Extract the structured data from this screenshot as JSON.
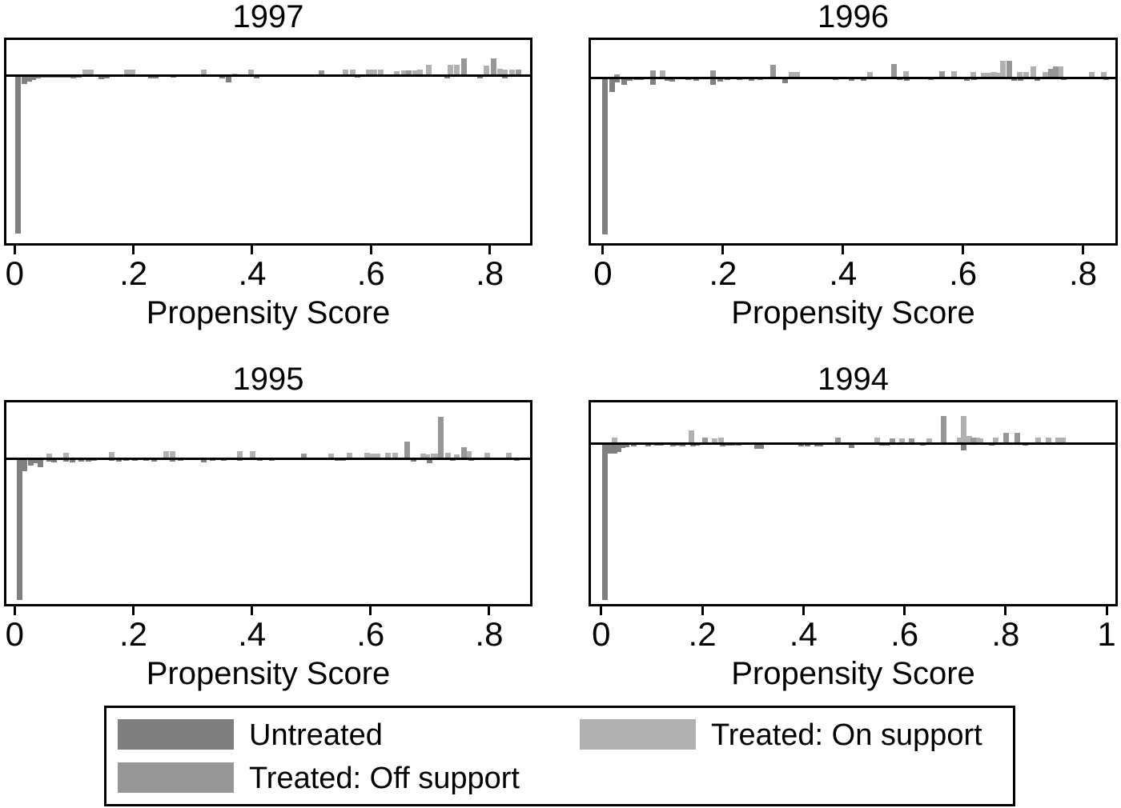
{
  "figure": {
    "background": "#ffffff",
    "line_color": "#000000"
  },
  "legend": {
    "items": [
      {
        "label": "Untreated",
        "color": "#7f7f7f"
      },
      {
        "label": "Treated: On support",
        "color": "#b1b1b1"
      },
      {
        "label": "Treated: Off support",
        "color": "#979797"
      }
    ]
  },
  "chart_data": [
    {
      "type": "bar",
      "title": "1997",
      "xlabel": "Propensity Score",
      "xlim": [
        -0.018,
        0.872
      ],
      "xticks": [
        0,
        0.2,
        0.4,
        0.6,
        0.8
      ],
      "xtick_labels": [
        "0",
        ".2",
        ".4",
        ".6",
        ".8"
      ],
      "grid": false,
      "note": "heights are density in display units; Untreated drawn downward from zero line",
      "series": [
        {
          "name": "Untreated",
          "direction": "down",
          "color": "#808080",
          "points": [
            [
              0.001,
              197
            ],
            [
              0.012,
              10
            ],
            [
              0.02,
              7
            ],
            [
              0.027,
              5
            ],
            [
              0.035,
              3
            ],
            [
              0.043,
              2
            ],
            [
              0.051,
              2
            ],
            [
              0.059,
              2
            ],
            [
              0.067,
              2
            ],
            [
              0.077,
              2
            ],
            [
              0.086,
              2
            ],
            [
              0.094,
              3
            ],
            [
              0.104,
              2
            ],
            [
              0.142,
              4
            ],
            [
              0.151,
              3
            ],
            [
              0.225,
              3
            ],
            [
              0.234,
              3
            ],
            [
              0.263,
              2
            ],
            [
              0.346,
              3
            ],
            [
              0.356,
              8
            ],
            [
              0.403,
              3
            ],
            [
              0.573,
              2
            ],
            [
              0.724,
              3
            ],
            [
              0.78,
              3
            ],
            [
              0.822,
              3
            ]
          ]
        },
        {
          "name": "Treated: On support",
          "direction": "up",
          "color": "#b1b1b1",
          "points": [
            [
              0.115,
              8
            ],
            [
              0.124,
              8
            ],
            [
              0.185,
              8
            ],
            [
              0.195,
              8
            ],
            [
              0.315,
              8
            ],
            [
              0.367,
              3
            ],
            [
              0.394,
              8
            ],
            [
              0.553,
              8
            ],
            [
              0.565,
              8
            ],
            [
              0.592,
              8
            ],
            [
              0.602,
              8
            ],
            [
              0.613,
              8
            ],
            [
              0.64,
              6
            ],
            [
              0.652,
              7
            ],
            [
              0.67,
              7
            ],
            [
              0.679,
              8
            ],
            [
              0.693,
              14
            ],
            [
              0.73,
              14
            ],
            [
              0.741,
              14
            ],
            [
              0.791,
              13
            ],
            [
              0.814,
              9
            ],
            [
              0.822,
              8
            ],
            [
              0.834,
              8
            ]
          ]
        },
        {
          "name": "Treated: Off support",
          "direction": "up",
          "color": "#979797",
          "points": [
            [
              0.512,
              7
            ],
            [
              0.66,
              7
            ],
            [
              0.753,
              22
            ],
            [
              0.802,
              22
            ],
            [
              0.845,
              8
            ]
          ]
        }
      ]
    },
    {
      "type": "bar",
      "title": "1996",
      "xlabel": "Propensity Score",
      "xlim": [
        -0.024,
        0.858
      ],
      "xticks": [
        0,
        0.2,
        0.4,
        0.6,
        0.8
      ],
      "xtick_labels": [
        "0",
        ".2",
        ".4",
        ".6",
        ".8"
      ],
      "grid": false,
      "note": "heights are density in display units; Untreated drawn downward from zero line",
      "series": [
        {
          "name": "Untreated",
          "direction": "down",
          "color": "#808080",
          "points": [
            [
              0.0,
              195
            ],
            [
              0.012,
              17
            ],
            [
              0.02,
              5
            ],
            [
              0.032,
              8
            ],
            [
              0.041,
              3
            ],
            [
              0.051,
              2
            ],
            [
              0.06,
              2
            ],
            [
              0.08,
              8
            ],
            [
              0.103,
              3
            ],
            [
              0.111,
              4
            ],
            [
              0.138,
              2
            ],
            [
              0.151,
              3
            ],
            [
              0.179,
              8
            ],
            [
              0.191,
              4
            ],
            [
              0.204,
              2
            ],
            [
              0.224,
              2
            ],
            [
              0.244,
              3
            ],
            [
              0.258,
              2
            ],
            [
              0.299,
              6
            ],
            [
              0.383,
              2
            ],
            [
              0.41,
              3
            ],
            [
              0.43,
              3
            ],
            [
              0.49,
              2
            ],
            [
              0.502,
              3
            ],
            [
              0.543,
              2
            ],
            [
              0.602,
              3
            ],
            [
              0.614,
              2
            ],
            [
              0.681,
              3
            ],
            [
              0.692,
              3
            ],
            [
              0.72,
              3
            ],
            [
              0.764,
              2
            ],
            [
              0.834,
              2
            ]
          ]
        },
        {
          "name": "Treated: On support",
          "direction": "up",
          "color": "#b1b1b1",
          "points": [
            [
              0.096,
              10
            ],
            [
              0.31,
              8
            ],
            [
              0.32,
              8
            ],
            [
              0.441,
              8
            ],
            [
              0.501,
              9
            ],
            [
              0.581,
              9
            ],
            [
              0.613,
              8
            ],
            [
              0.63,
              7
            ],
            [
              0.64,
              7
            ],
            [
              0.648,
              8
            ],
            [
              0.657,
              7
            ],
            [
              0.663,
              22
            ],
            [
              0.69,
              8
            ],
            [
              0.701,
              8
            ],
            [
              0.713,
              15
            ],
            [
              0.733,
              8
            ],
            [
              0.758,
              15
            ],
            [
              0.81,
              8
            ],
            [
              0.83,
              8
            ]
          ]
        },
        {
          "name": "Treated: Off support",
          "direction": "up",
          "color": "#979797",
          "points": [
            [
              0.02,
              5
            ],
            [
              0.08,
              10
            ],
            [
              0.179,
              10
            ],
            [
              0.279,
              17
            ],
            [
              0.481,
              18
            ],
            [
              0.561,
              9
            ],
            [
              0.673,
              22
            ],
            [
              0.742,
              12
            ],
            [
              0.75,
              15
            ]
          ]
        }
      ]
    },
    {
      "type": "bar",
      "title": "1995",
      "xlabel": "Propensity Score",
      "xlim": [
        -0.018,
        0.873
      ],
      "xticks": [
        0,
        0.2,
        0.4,
        0.6,
        0.8
      ],
      "xtick_labels": [
        "0",
        ".2",
        ".4",
        ".6",
        ".8"
      ],
      "grid": false,
      "note": "heights are density in display units; Untreated drawn downward from zero line",
      "series": [
        {
          "name": "Untreated",
          "direction": "down",
          "color": "#808080",
          "points": [
            [
              0.004,
              176
            ],
            [
              0.013,
              15
            ],
            [
              0.023,
              8
            ],
            [
              0.03,
              5
            ],
            [
              0.039,
              10
            ],
            [
              0.054,
              3
            ],
            [
              0.062,
              4
            ],
            [
              0.083,
              3
            ],
            [
              0.094,
              4
            ],
            [
              0.108,
              3
            ],
            [
              0.121,
              3
            ],
            [
              0.13,
              2
            ],
            [
              0.16,
              2
            ],
            [
              0.171,
              3
            ],
            [
              0.184,
              2
            ],
            [
              0.198,
              2
            ],
            [
              0.218,
              2
            ],
            [
              0.231,
              3
            ],
            [
              0.262,
              3
            ],
            [
              0.276,
              2
            ],
            [
              0.315,
              4
            ],
            [
              0.329,
              2
            ],
            [
              0.348,
              2
            ],
            [
              0.376,
              2
            ],
            [
              0.409,
              2
            ],
            [
              0.43,
              2
            ],
            [
              0.54,
              2
            ],
            [
              0.55,
              2
            ],
            [
              0.668,
              3
            ],
            [
              0.695,
              5
            ],
            [
              0.735,
              2
            ],
            [
              0.766,
              2
            ],
            [
              0.843,
              2
            ]
          ]
        },
        {
          "name": "Treated: On support",
          "direction": "up",
          "color": "#b1b1b1",
          "points": [
            [
              0.054,
              7
            ],
            [
              0.083,
              8
            ],
            [
              0.16,
              9
            ],
            [
              0.251,
              10
            ],
            [
              0.262,
              10
            ],
            [
              0.376,
              10
            ],
            [
              0.397,
              10
            ],
            [
              0.53,
              7
            ],
            [
              0.56,
              8
            ],
            [
              0.59,
              8
            ],
            [
              0.598,
              7
            ],
            [
              0.608,
              7
            ],
            [
              0.625,
              8
            ],
            [
              0.637,
              8
            ],
            [
              0.684,
              7
            ],
            [
              0.691,
              6
            ],
            [
              0.702,
              7
            ],
            [
              0.708,
              7
            ],
            [
              0.726,
              8
            ],
            [
              0.742,
              6
            ],
            [
              0.761,
              10
            ],
            [
              0.792,
              8
            ],
            [
              0.829,
              8
            ]
          ]
        },
        {
          "name": "Treated: Off support",
          "direction": "up",
          "color": "#979797",
          "points": [
            [
              0.483,
              7
            ],
            [
              0.657,
              22
            ],
            [
              0.715,
              53
            ],
            [
              0.753,
              15
            ]
          ]
        }
      ]
    },
    {
      "type": "bar",
      "title": "1994",
      "xlabel": "Propensity Score",
      "xlim": [
        -0.025,
        1.022
      ],
      "xticks": [
        0,
        0.2,
        0.4,
        0.6,
        0.8,
        1
      ],
      "xtick_labels": [
        "0",
        ".2",
        ".4",
        ".6",
        ".8",
        "1"
      ],
      "grid": false,
      "note": "heights are density in display units; Untreated drawn downward from zero line",
      "series": [
        {
          "name": "Untreated",
          "direction": "down",
          "color": "#808080",
          "points": [
            [
              0.003,
              195
            ],
            [
              0.014,
              12
            ],
            [
              0.022,
              12
            ],
            [
              0.03,
              10
            ],
            [
              0.038,
              5
            ],
            [
              0.046,
              4
            ],
            [
              0.059,
              3
            ],
            [
              0.089,
              3
            ],
            [
              0.105,
              2
            ],
            [
              0.114,
              2
            ],
            [
              0.138,
              3
            ],
            [
              0.149,
              2
            ],
            [
              0.157,
              3
            ],
            [
              0.177,
              3
            ],
            [
              0.185,
              2
            ],
            [
              0.236,
              3
            ],
            [
              0.244,
              2
            ],
            [
              0.254,
              2
            ],
            [
              0.268,
              2
            ],
            [
              0.303,
              6
            ],
            [
              0.312,
              6
            ],
            [
              0.391,
              3
            ],
            [
              0.403,
              3
            ],
            [
              0.422,
              3
            ],
            [
              0.429,
              3
            ],
            [
              0.49,
              5
            ],
            [
              0.55,
              2
            ],
            [
              0.561,
              2
            ],
            [
              0.632,
              2
            ],
            [
              0.712,
              8
            ],
            [
              0.767,
              2
            ],
            [
              0.835,
              2
            ]
          ]
        },
        {
          "name": "Treated: On support",
          "direction": "up",
          "color": "#b1b1b1",
          "points": [
            [
              0.022,
              8
            ],
            [
              0.173,
              17
            ],
            [
              0.22,
              7
            ],
            [
              0.233,
              8
            ],
            [
              0.542,
              8
            ],
            [
              0.59,
              7
            ],
            [
              0.645,
              7
            ],
            [
              0.704,
              8
            ],
            [
              0.712,
              35
            ],
            [
              0.723,
              10
            ],
            [
              0.739,
              8
            ],
            [
              0.746,
              7
            ],
            [
              0.775,
              8
            ],
            [
              0.859,
              8
            ],
            [
              0.881,
              8
            ],
            [
              0.899,
              8
            ],
            [
              0.908,
              8
            ]
          ]
        },
        {
          "name": "Treated: Off support",
          "direction": "up",
          "color": "#979797",
          "points": [
            [
              0.201,
              8
            ],
            [
              0.463,
              8
            ],
            [
              0.572,
              7
            ],
            [
              0.609,
              7
            ],
            [
              0.672,
              35
            ],
            [
              0.731,
              8
            ],
            [
              0.796,
              14
            ],
            [
              0.818,
              14
            ]
          ]
        }
      ]
    }
  ]
}
